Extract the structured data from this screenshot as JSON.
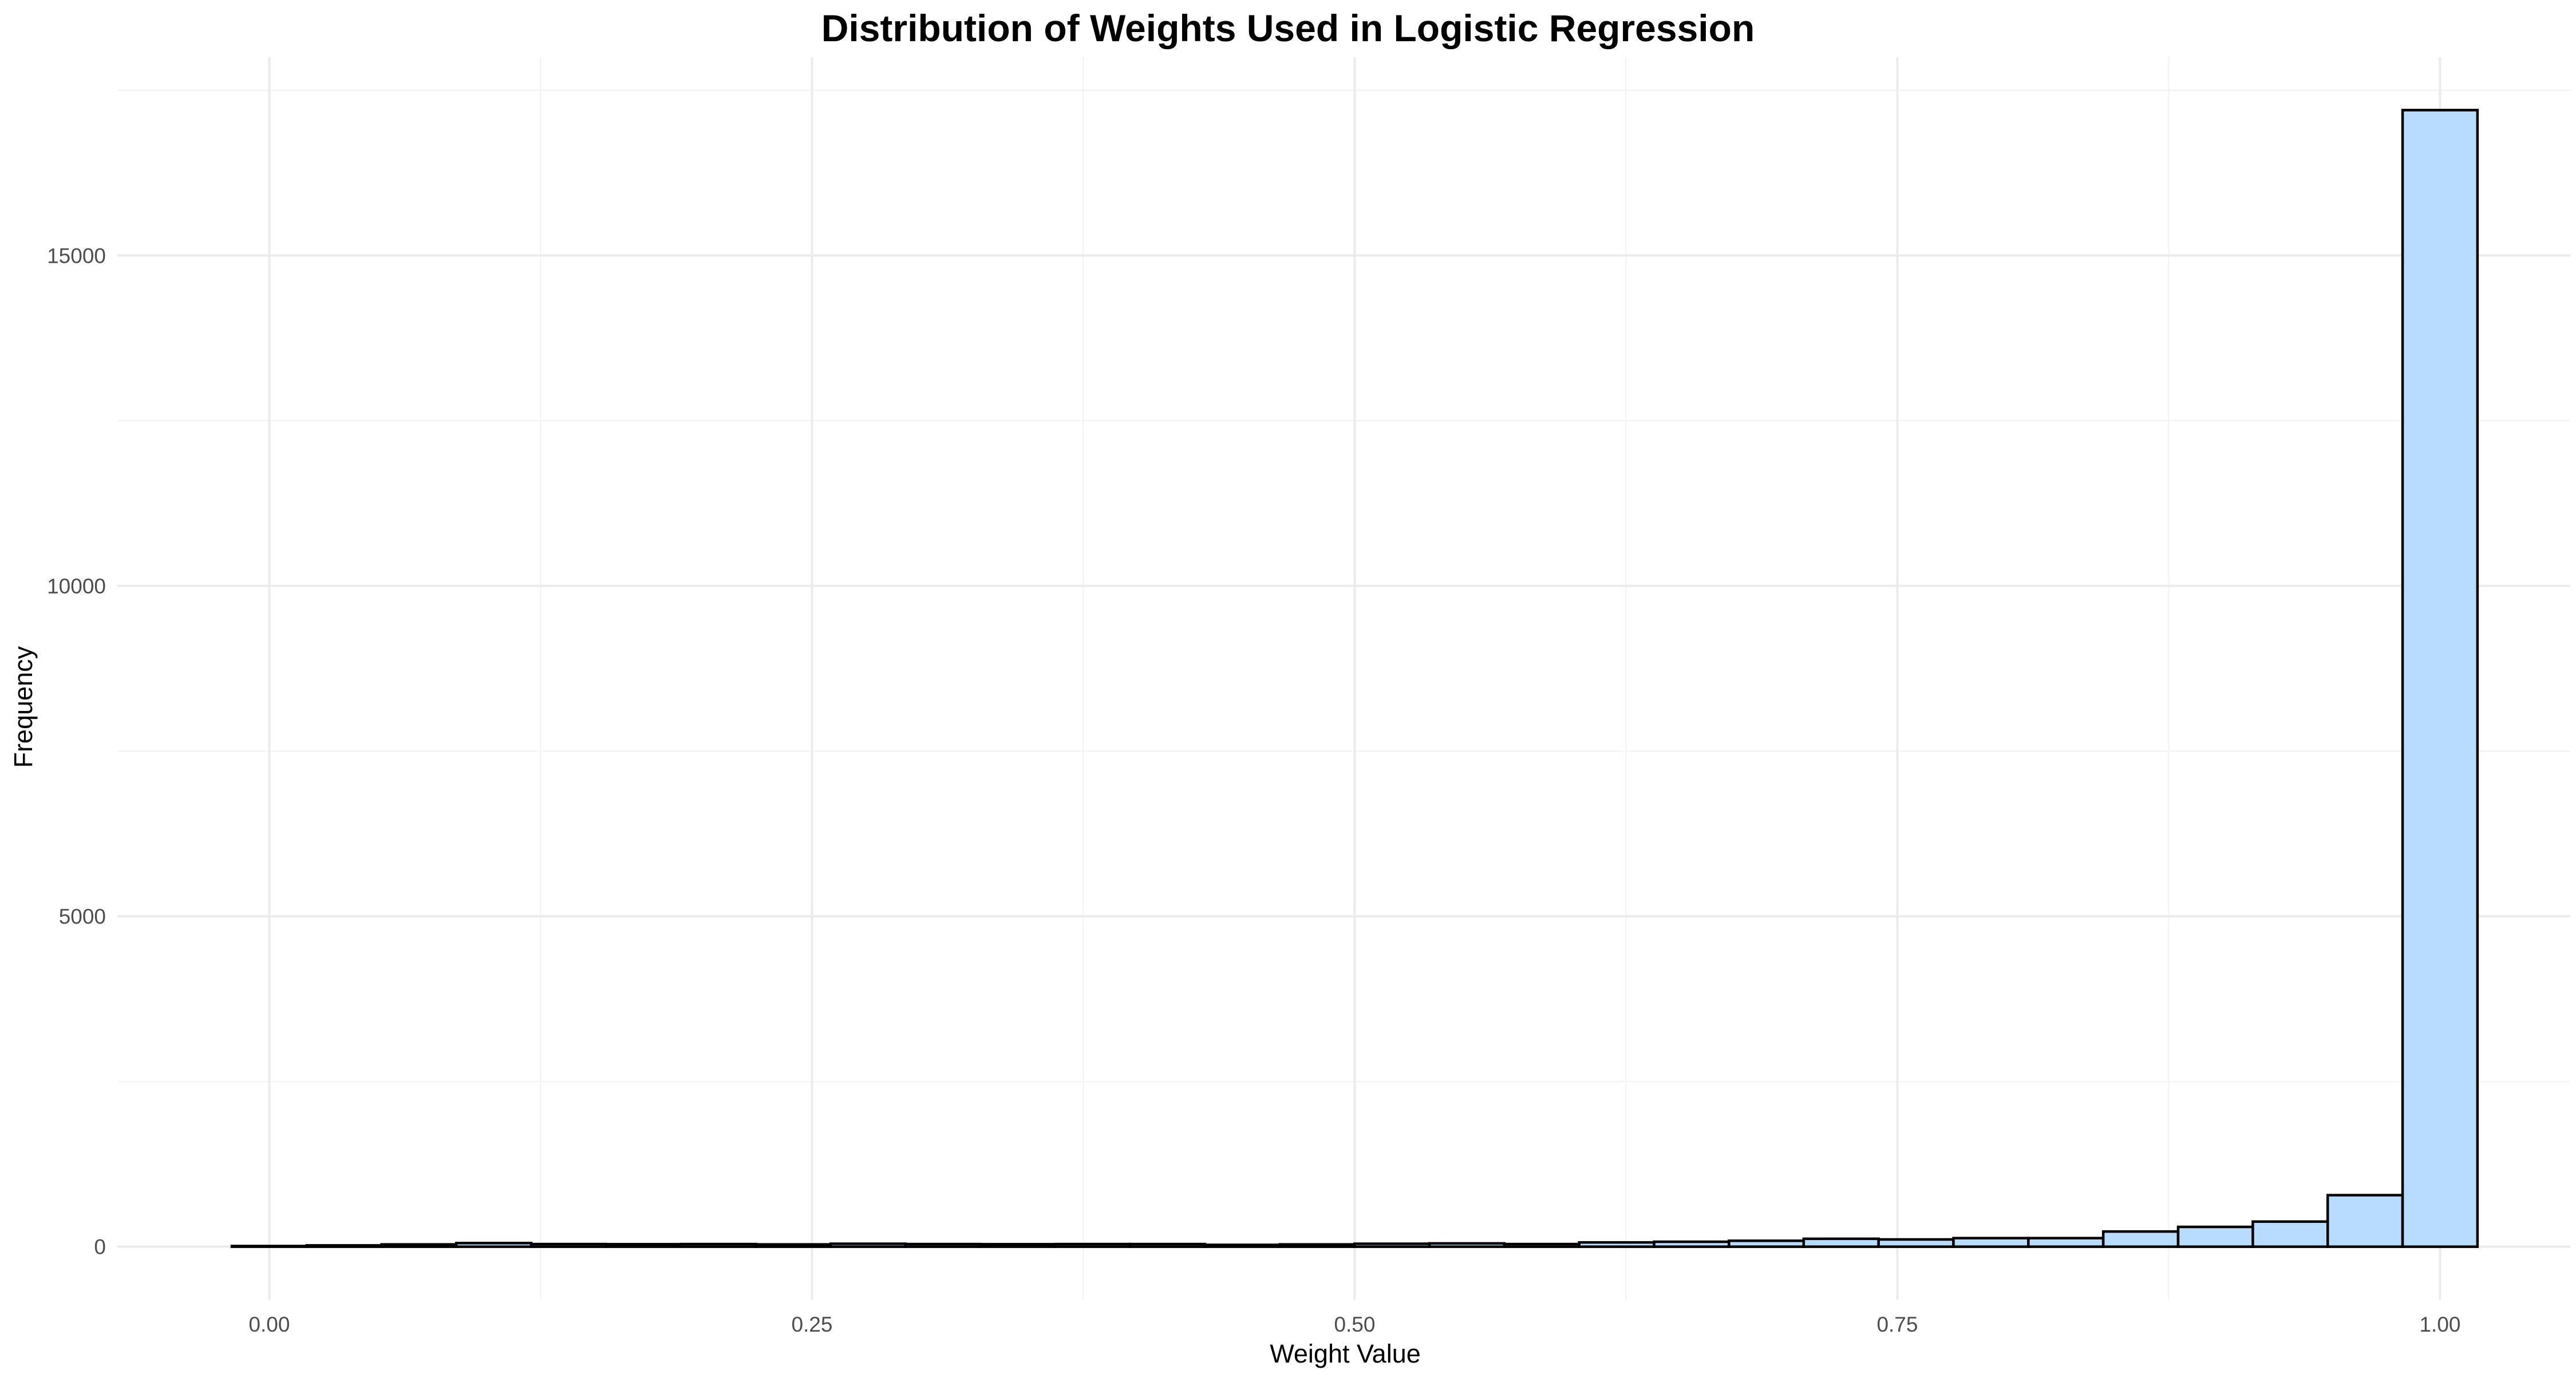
{
  "chart_data": {
    "type": "bar",
    "title": "Distribution of Weights Used in Logistic Regression",
    "xlabel": "Weight Value",
    "ylabel": "Frequency",
    "bar_fill": "#b8dcff",
    "bar_outline": "#000000",
    "bin_width": 0.0345,
    "xlim": [
      -0.07,
      1.06
    ],
    "ylim": [
      -800,
      18000
    ],
    "x_ticks": [
      0.0,
      0.25,
      0.5,
      0.75,
      1.0
    ],
    "x_tick_labels": [
      "0.00",
      "0.25",
      "0.50",
      "0.75",
      "1.00"
    ],
    "y_ticks": [
      0,
      5000,
      10000,
      15000
    ],
    "y_tick_labels": [
      "0",
      "5000",
      "10000",
      "15000"
    ],
    "grid": true,
    "legend": "none",
    "bins": [
      {
        "x": 0.0,
        "count": 10
      },
      {
        "x": 0.0345,
        "count": 20
      },
      {
        "x": 0.069,
        "count": 35
      },
      {
        "x": 0.1034,
        "count": 55
      },
      {
        "x": 0.1379,
        "count": 40
      },
      {
        "x": 0.1724,
        "count": 38
      },
      {
        "x": 0.2069,
        "count": 40
      },
      {
        "x": 0.2414,
        "count": 35
      },
      {
        "x": 0.2759,
        "count": 45
      },
      {
        "x": 0.3103,
        "count": 40
      },
      {
        "x": 0.3448,
        "count": 38
      },
      {
        "x": 0.3793,
        "count": 40
      },
      {
        "x": 0.4138,
        "count": 40
      },
      {
        "x": 0.4483,
        "count": 28
      },
      {
        "x": 0.4828,
        "count": 35
      },
      {
        "x": 0.5172,
        "count": 45
      },
      {
        "x": 0.5517,
        "count": 50
      },
      {
        "x": 0.5862,
        "count": 40
      },
      {
        "x": 0.6207,
        "count": 65
      },
      {
        "x": 0.6552,
        "count": 75
      },
      {
        "x": 0.6897,
        "count": 90
      },
      {
        "x": 0.7241,
        "count": 120
      },
      {
        "x": 0.7586,
        "count": 110
      },
      {
        "x": 0.7931,
        "count": 130
      },
      {
        "x": 0.8276,
        "count": 130
      },
      {
        "x": 0.8621,
        "count": 230
      },
      {
        "x": 0.8966,
        "count": 300
      },
      {
        "x": 0.931,
        "count": 380
      },
      {
        "x": 0.9655,
        "count": 780
      },
      {
        "x": 1.0,
        "count": 17200
      }
    ]
  }
}
